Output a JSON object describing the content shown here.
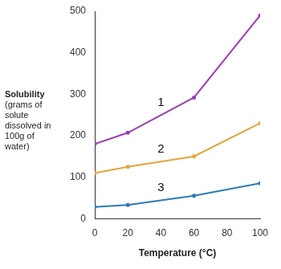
{
  "chart_data": {
    "type": "line",
    "x_label": "Temperature (°C)",
    "y_label": "Solubility (grams of solute dissolved in 100g of water)",
    "x": [
      0,
      20,
      60,
      100
    ],
    "series": [
      {
        "name": "1",
        "color": "#9b3fb6",
        "values": [
          180,
          207,
          292,
          490
        ]
      },
      {
        "name": "2",
        "color": "#e8a33d",
        "values": [
          110,
          125,
          150,
          230
        ]
      },
      {
        "name": "3",
        "color": "#2a7ab9",
        "values": [
          28,
          33,
          55,
          85
        ]
      }
    ],
    "xlim": [
      0,
      100
    ],
    "xticks": [
      0,
      20,
      40,
      60,
      80,
      100
    ],
    "ylim": [
      0,
      500
    ],
    "yticks": [
      0,
      100,
      200,
      300,
      400,
      500
    ],
    "grid": false,
    "marker": "circle"
  }
}
